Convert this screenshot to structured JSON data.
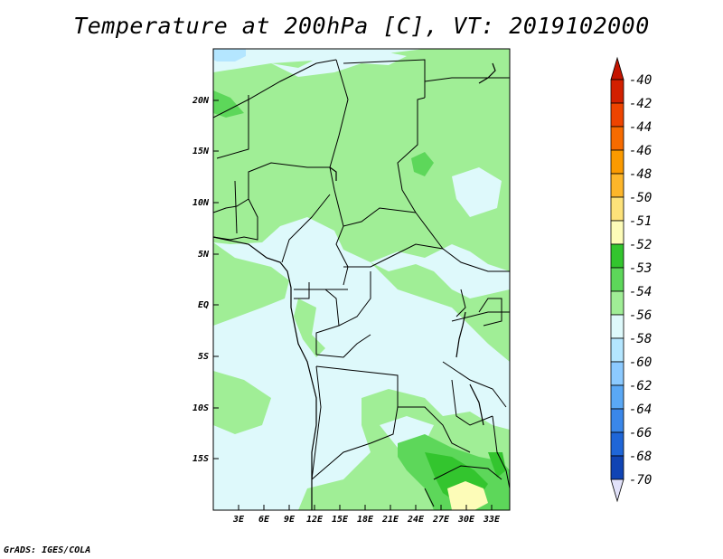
{
  "title": "Temperature at 200hPa [C], VT: 2019102000",
  "credit": "GrADS: IGES/COLA",
  "map": {
    "lat_labels": [
      "20N",
      "15N",
      "10N",
      "5N",
      "EQ",
      "5S",
      "10S",
      "15S"
    ],
    "lon_labels": [
      "3E",
      "6E",
      "9E",
      "12E",
      "15E",
      "18E",
      "21E",
      "24E",
      "27E",
      "30E",
      "33E"
    ]
  },
  "colorbar": {
    "labels": [
      "-40",
      "-42",
      "-44",
      "-46",
      "-48",
      "-50",
      "-51",
      "-52",
      "-53",
      "-54",
      "-56",
      "-58",
      "-60",
      "-62",
      "-64",
      "-66",
      "-68",
      "-70"
    ],
    "colors": [
      "#d22000",
      "#ee4400",
      "#f76b00",
      "#fb9a00",
      "#fdb62a",
      "#fde27a",
      "#fdfcb8",
      "#33c52e",
      "#5dd75a",
      "#a0ee96",
      "#def9fb",
      "#b4e6ff",
      "#8ccaff",
      "#5aa8f5",
      "#3a87ea",
      "#1f66d8",
      "#1044b4",
      "#0a1780"
    ],
    "end_colors": {
      "top": "#c41400",
      "bottom": "#e2e2fa"
    }
  }
}
